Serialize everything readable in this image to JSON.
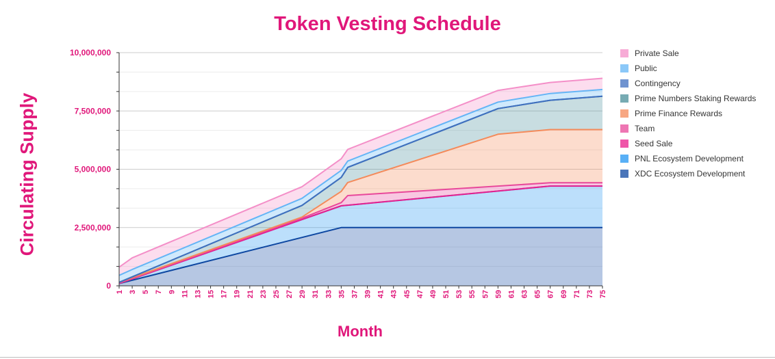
{
  "chart_data": {
    "type": "area",
    "stacked": true,
    "title": "Token Vesting Schedule",
    "xlabel": "Month",
    "ylabel": "Circulating Supply",
    "xlim": [
      1,
      75
    ],
    "ylim": [
      0,
      10000000
    ],
    "y_ticks": [
      "0",
      "2,500,000",
      "5,000,000",
      "7,500,000",
      "10,000,000"
    ],
    "y_tick_values": [
      0,
      2500000,
      5000000,
      7500000,
      10000000
    ],
    "x_ticks": [
      "1",
      "3",
      "5",
      "7",
      "9",
      "11",
      "13",
      "15",
      "17",
      "19",
      "21",
      "23",
      "25",
      "27",
      "29",
      "31",
      "33",
      "35",
      "37",
      "39",
      "41",
      "43",
      "45",
      "47",
      "49",
      "51",
      "53",
      "55",
      "57",
      "59",
      "61",
      "63",
      "65",
      "67",
      "69",
      "71",
      "73",
      "75"
    ],
    "x_tick_values": [
      1,
      3,
      5,
      7,
      9,
      11,
      13,
      15,
      17,
      19,
      21,
      23,
      25,
      27,
      29,
      31,
      33,
      35,
      37,
      39,
      41,
      43,
      45,
      47,
      49,
      51,
      53,
      55,
      57,
      59,
      61,
      63,
      65,
      67,
      69,
      71,
      73,
      75
    ],
    "grid": true,
    "legend_position": "right",
    "series": [
      {
        "name": "XDC Ecosystem Development",
        "color": "#0d47a1",
        "points": [
          [
            1,
            100000
          ],
          [
            35,
            2500000
          ],
          [
            75,
            2500000
          ]
        ]
      },
      {
        "name": "PNL Ecosystem Development",
        "color": "#2196f3",
        "points": [
          [
            1,
            100000
          ],
          [
            35,
            3430000
          ],
          [
            67,
            4280000
          ],
          [
            75,
            4280000
          ]
        ]
      },
      {
        "name": "Seed Sale",
        "color": "#e91e8c",
        "points": [
          [
            1,
            100000
          ],
          [
            35,
            3430000
          ],
          [
            67,
            4280000
          ],
          [
            75,
            4280000
          ]
        ]
      },
      {
        "name": "Team",
        "color": "#e8489a",
        "points": [
          [
            1,
            120000
          ],
          [
            29,
            2900000
          ],
          [
            35,
            3570000
          ],
          [
            36,
            3870000
          ],
          [
            67,
            4420000
          ],
          [
            75,
            4420000
          ]
        ]
      },
      {
        "name": "Prime Finance Rewards",
        "color": "#f48a5a",
        "points": [
          [
            1,
            150000
          ],
          [
            29,
            2950000
          ],
          [
            35,
            4050000
          ],
          [
            36,
            4430000
          ],
          [
            59,
            6500000
          ],
          [
            67,
            6700000
          ],
          [
            75,
            6700000
          ]
        ]
      },
      {
        "name": "Prime Numbers Staking Rewards",
        "color": "#4a8f9a",
        "points": [
          [
            1,
            150000
          ],
          [
            29,
            3450000
          ],
          [
            35,
            4650000
          ],
          [
            36,
            5080000
          ],
          [
            59,
            7600000
          ],
          [
            67,
            7960000
          ],
          [
            75,
            8130000
          ]
        ]
      },
      {
        "name": "Contingency",
        "color": "#3f6fc0",
        "points": [
          [
            1,
            150000
          ],
          [
            29,
            3450000
          ],
          [
            35,
            4650000
          ],
          [
            36,
            5080000
          ],
          [
            59,
            7600000
          ],
          [
            67,
            7960000
          ],
          [
            75,
            8130000
          ]
        ]
      },
      {
        "name": "Public",
        "color": "#64b5f6",
        "points": [
          [
            1,
            450000
          ],
          [
            3,
            700000
          ],
          [
            29,
            3750000
          ],
          [
            35,
            4950000
          ],
          [
            36,
            5350000
          ],
          [
            59,
            7880000
          ],
          [
            67,
            8250000
          ],
          [
            75,
            8420000
          ]
        ]
      },
      {
        "name": "Private Sale",
        "color": "#f48fc8",
        "points": [
          [
            1,
            800000
          ],
          [
            3,
            1200000
          ],
          [
            29,
            4250000
          ],
          [
            35,
            5450000
          ],
          [
            36,
            5850000
          ],
          [
            59,
            8380000
          ],
          [
            67,
            8720000
          ],
          [
            75,
            8900000
          ]
        ]
      }
    ]
  },
  "legend_order": [
    "Private Sale",
    "Public",
    "Contingency",
    "Prime Numbers Staking Rewards",
    "Prime Finance Rewards",
    "Team",
    "Seed Sale",
    "PNL Ecosystem Development",
    "XDC Ecosystem Development"
  ]
}
